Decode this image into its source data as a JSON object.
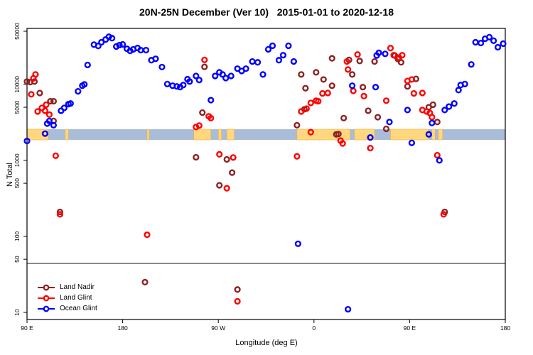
{
  "title": "20N-25N December (Ver 10)   2015-01-01 to 2020-12-18",
  "chart_data": {
    "type": "scatter",
    "xlabel": "Longitude (deg E)",
    "ylabel": "N Total",
    "x_axis": {
      "min": 90,
      "max": 540,
      "ticks": [
        90,
        180,
        270,
        360,
        450,
        540
      ],
      "tick_labels": [
        "90 E",
        "180",
        "90 W",
        "0",
        "90 E",
        "180"
      ],
      "note": "longitude increases eastward from 90E, wrapping through 180, 90W, 0, 90E to 180"
    },
    "y_axis": {
      "scale": "log",
      "ticks": [
        10,
        50,
        100,
        500,
        1000,
        5000,
        10000,
        50000
      ],
      "tick_labels": [
        "10",
        "50",
        "100",
        "500",
        "1000",
        "5000",
        "10000",
        "50000"
      ]
    },
    "ref_line_value": 44,
    "ref_line_color": "#707070",
    "map_band": {
      "value_top": 2570,
      "value_bottom": 1860,
      "ocean_color": "#A9BDD8",
      "land_color": "#FFD77E",
      "coast_color": "#F0A830",
      "land_segments": [
        [
          90,
          110
        ],
        [
          126,
          129
        ],
        [
          203,
          205
        ],
        [
          247,
          263
        ],
        [
          270,
          273
        ],
        [
          278,
          285
        ],
        [
          344,
          394
        ],
        [
          398,
          417
        ],
        [
          432,
          468
        ],
        [
          471,
          474
        ],
        [
          477,
          481
        ]
      ]
    },
    "legend_position": "bottom-left",
    "series": [
      {
        "name": "Land Nadir",
        "color": "#8B2323",
        "points": [
          [
            90,
            10900
          ],
          [
            93,
            10700
          ],
          [
            97,
            10900
          ],
          [
            102,
            7700
          ],
          [
            112,
            6000
          ],
          [
            115,
            6000
          ],
          [
            115,
            3300
          ],
          [
            121,
            210
          ],
          [
            201,
            25
          ],
          [
            249,
            1100
          ],
          [
            255,
            4250
          ],
          [
            257,
            17000
          ],
          [
            271,
            470
          ],
          [
            278,
            1030
          ],
          [
            283,
            690
          ],
          [
            288,
            20
          ],
          [
            344,
            2900
          ],
          [
            348,
            13500
          ],
          [
            351,
            4700
          ],
          [
            352,
            8900
          ],
          [
            362,
            14400
          ],
          [
            369,
            11600
          ],
          [
            377,
            9600
          ],
          [
            377,
            22000
          ],
          [
            381,
            2200
          ],
          [
            383,
            2220
          ],
          [
            388,
            3600
          ],
          [
            393,
            21000
          ],
          [
            396,
            13500
          ],
          [
            403,
            20300
          ],
          [
            406,
            9200
          ],
          [
            411,
            4500
          ],
          [
            417,
            20000
          ],
          [
            420,
            3700
          ],
          [
            428,
            2600
          ],
          [
            436,
            24000
          ],
          [
            439,
            21500
          ],
          [
            442,
            19500
          ],
          [
            448,
            9400
          ],
          [
            456,
            11800
          ],
          [
            468,
            5000
          ],
          [
            472,
            5400
          ],
          [
            476,
            3200
          ],
          [
            483,
            210
          ]
        ]
      },
      {
        "name": "Land Glint",
        "color": "#FF0000",
        "points": [
          [
            94,
            7400
          ],
          [
            96,
            12000
          ],
          [
            98,
            13500
          ],
          [
            100,
            4400
          ],
          [
            104,
            4900
          ],
          [
            107,
            4500
          ],
          [
            108,
            5400
          ],
          [
            111,
            4000
          ],
          [
            117,
            1150
          ],
          [
            121,
            195
          ],
          [
            203,
            105
          ],
          [
            249,
            2750
          ],
          [
            252,
            2870
          ],
          [
            257,
            21000
          ],
          [
            261,
            3800
          ],
          [
            263,
            3600
          ],
          [
            271,
            1200
          ],
          [
            278,
            430
          ],
          [
            284,
            1090
          ],
          [
            288,
            14
          ],
          [
            344,
            1130
          ],
          [
            348,
            4400
          ],
          [
            353,
            4800
          ],
          [
            357,
            5700
          ],
          [
            357,
            2350
          ],
          [
            362,
            6100
          ],
          [
            364,
            6000
          ],
          [
            368,
            7600
          ],
          [
            373,
            7700
          ],
          [
            385,
            1820
          ],
          [
            387,
            1670
          ],
          [
            391,
            20000
          ],
          [
            392,
            15700
          ],
          [
            397,
            8200
          ],
          [
            401,
            24700
          ],
          [
            407,
            7000
          ],
          [
            413,
            1450
          ],
          [
            428,
            6100
          ],
          [
            432,
            30000
          ],
          [
            435,
            24200
          ],
          [
            440,
            22500
          ],
          [
            443,
            24200
          ],
          [
            448,
            11100
          ],
          [
            452,
            11600
          ],
          [
            454,
            7600
          ],
          [
            462,
            7700
          ],
          [
            462,
            4600
          ],
          [
            466,
            4400
          ],
          [
            469,
            4200
          ],
          [
            471,
            3700
          ],
          [
            476,
            1170
          ],
          [
            482,
            195
          ]
        ]
      },
      {
        "name": "Ocean Glint",
        "color": "#0000FF",
        "points": [
          [
            90,
            1800
          ],
          [
            107,
            2250
          ],
          [
            109,
            3050
          ],
          [
            111,
            3300
          ],
          [
            115,
            2900
          ],
          [
            122,
            4500
          ],
          [
            125,
            4900
          ],
          [
            129,
            5500
          ],
          [
            131,
            5600
          ],
          [
            138,
            8100
          ],
          [
            142,
            9600
          ],
          [
            144,
            10000
          ],
          [
            147,
            18000
          ],
          [
            153,
            33300
          ],
          [
            157,
            32000
          ],
          [
            160,
            35800
          ],
          [
            164,
            38900
          ],
          [
            167,
            42300
          ],
          [
            170,
            40500
          ],
          [
            174,
            31500
          ],
          [
            177,
            32900
          ],
          [
            180,
            33600
          ],
          [
            184,
            29400
          ],
          [
            187,
            27600
          ],
          [
            190,
            28900
          ],
          [
            194,
            30100
          ],
          [
            197,
            28200
          ],
          [
            202,
            28200
          ],
          [
            207,
            20800
          ],
          [
            211,
            21700
          ],
          [
            217,
            16900
          ],
          [
            222,
            10100
          ],
          [
            227,
            9600
          ],
          [
            231,
            9400
          ],
          [
            234,
            9200
          ],
          [
            237,
            9800
          ],
          [
            241,
            11700
          ],
          [
            243,
            10900
          ],
          [
            249,
            12900
          ],
          [
            252,
            11400
          ],
          [
            263,
            6200
          ],
          [
            267,
            12900
          ],
          [
            271,
            14400
          ],
          [
            274,
            13500
          ],
          [
            277,
            12100
          ],
          [
            282,
            12900
          ],
          [
            288,
            16100
          ],
          [
            292,
            15000
          ],
          [
            296,
            16100
          ],
          [
            302,
            20000
          ],
          [
            307,
            19500
          ],
          [
            312,
            13500
          ],
          [
            317,
            28900
          ],
          [
            321,
            32200
          ],
          [
            327,
            20800
          ],
          [
            331,
            24200
          ],
          [
            336,
            32200
          ],
          [
            341,
            20000
          ],
          [
            345,
            80
          ],
          [
            392,
            11
          ],
          [
            396,
            9600
          ],
          [
            413,
            2000
          ],
          [
            418,
            9200
          ],
          [
            419,
            24000
          ],
          [
            421,
            26000
          ],
          [
            427,
            25200
          ],
          [
            431,
            3200
          ],
          [
            448,
            4600
          ],
          [
            452,
            1700
          ],
          [
            468,
            2200
          ],
          [
            471,
            3100
          ],
          [
            478,
            1000
          ],
          [
            483,
            4600
          ],
          [
            487,
            5100
          ],
          [
            492,
            5600
          ],
          [
            496,
            8400
          ],
          [
            498,
            9800
          ],
          [
            502,
            10100
          ],
          [
            508,
            18300
          ],
          [
            512,
            35800
          ],
          [
            517,
            35000
          ],
          [
            521,
            39800
          ],
          [
            525,
            41800
          ],
          [
            529,
            37500
          ],
          [
            533,
            30800
          ],
          [
            538,
            34300
          ]
        ]
      }
    ]
  }
}
